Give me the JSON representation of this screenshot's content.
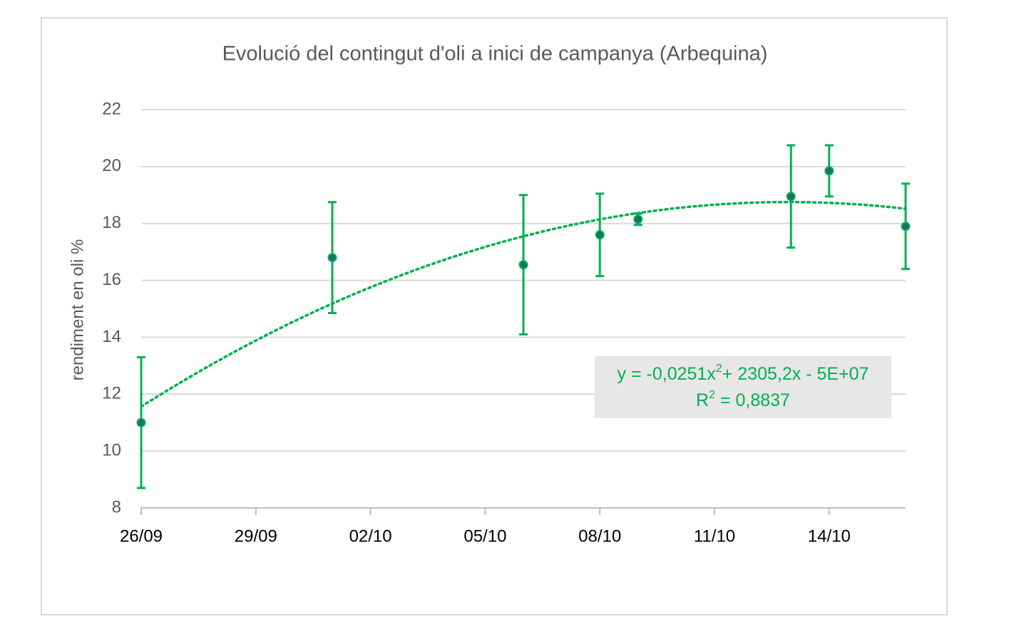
{
  "chart_data": {
    "type": "scatter",
    "title": "Evolució del contingut d'oli a inici de campanya (Arbequina)",
    "y_label": "rendiment en oli %",
    "x": [
      45926,
      45931,
      45936,
      45938,
      45939,
      45943,
      45944,
      45946
    ],
    "series": [
      {
        "name": "rendiment",
        "color": "#1f6f6f",
        "edge_color": "#00b050",
        "values": [
          11.0,
          16.8,
          16.55,
          17.6,
          18.15,
          18.95,
          19.85,
          17.9
        ],
        "errors": [
          2.3,
          1.95,
          2.45,
          1.45,
          0.2,
          1.8,
          0.9,
          1.5
        ]
      }
    ],
    "trendline": {
      "kind": "polynomial",
      "order": 2,
      "color": "#00b050",
      "equation": [
        "y = -0,0251x",
        "2",
        "+ 2305,2x - 5E+07"
      ],
      "r_squared": [
        "R",
        "2",
        " = 0,8837"
      ]
    },
    "xlim": [
      45926,
      45946
    ],
    "xticks": [
      {
        "value": 45926,
        "label": "26/09"
      },
      {
        "value": 45929,
        "label": "29/09"
      },
      {
        "value": 45932,
        "label": "02/10"
      },
      {
        "value": 45935,
        "label": "05/10"
      },
      {
        "value": 45938,
        "label": "08/10"
      },
      {
        "value": 45941,
        "label": "11/10"
      },
      {
        "value": 45944,
        "label": "14/10"
      }
    ],
    "ylim": [
      8,
      22
    ],
    "yticks": [
      8,
      10,
      12,
      14,
      16,
      18,
      20,
      22
    ],
    "grid": true
  }
}
